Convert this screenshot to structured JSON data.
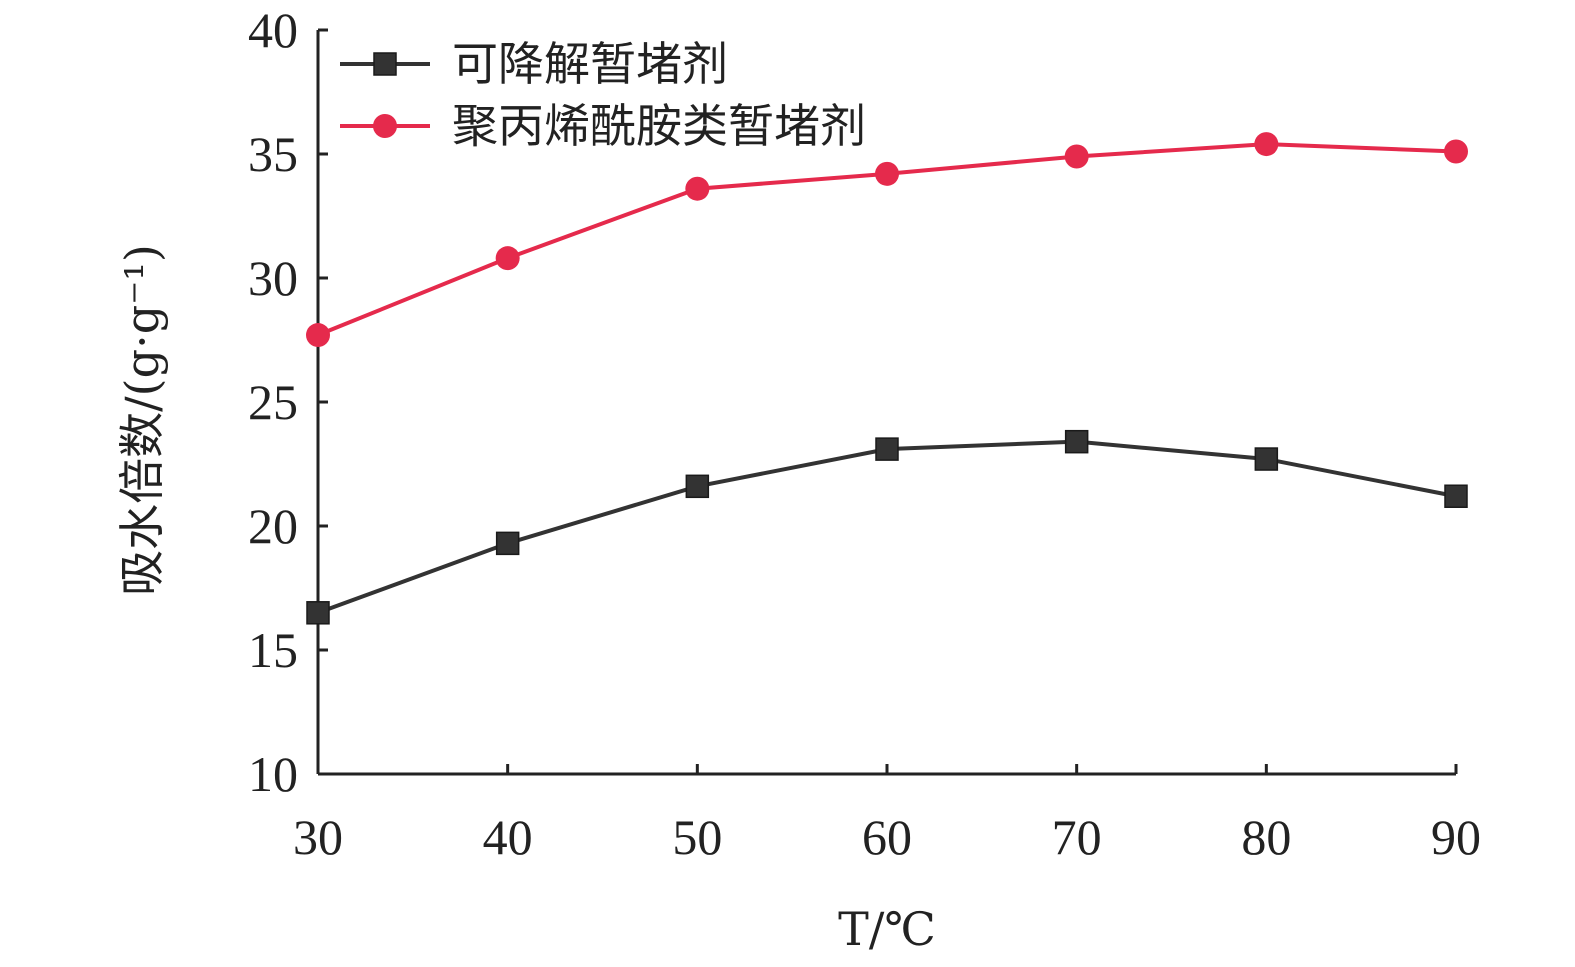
{
  "chart_data": {
    "type": "line",
    "x": [
      30,
      40,
      50,
      60,
      70,
      80,
      90
    ],
    "series": [
      {
        "name": "可降解暂堵剂",
        "values": [
          16.5,
          19.3,
          21.6,
          23.1,
          23.4,
          22.7,
          21.2
        ],
        "color": "#333333",
        "marker": "square"
      },
      {
        "name": "聚丙烯酰胺类暂堵剂",
        "values": [
          27.7,
          30.8,
          33.6,
          34.2,
          34.9,
          35.4,
          35.1
        ],
        "color": "#e52a4c",
        "marker": "circle"
      }
    ],
    "xlabel": "T/℃",
    "ylabel": "吸水倍数/(g·g⁻¹)",
    "xlim": [
      30,
      90
    ],
    "ylim": [
      10,
      40
    ],
    "xticks": [
      "30",
      "40",
      "50",
      "60",
      "70",
      "80",
      "90"
    ],
    "yticks": [
      "10",
      "15",
      "20",
      "25",
      "30",
      "35",
      "40"
    ],
    "grid": false,
    "legend_position": "top-left"
  }
}
